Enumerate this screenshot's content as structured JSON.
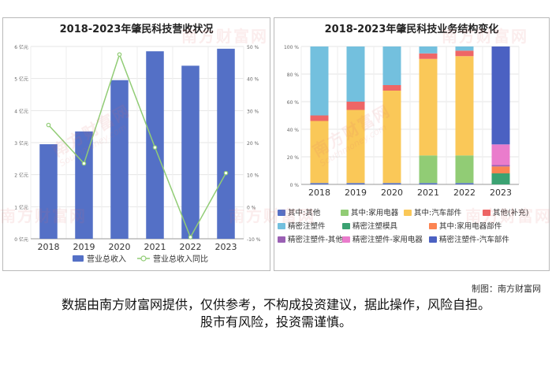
{
  "chart_data": [
    {
      "type": "bar+line",
      "title": "2018-2023年肇民科技营收状况",
      "categories": [
        "2018",
        "2019",
        "2020",
        "2021",
        "2022",
        "2023"
      ],
      "y_left": {
        "ylim": [
          0,
          6
        ],
        "ticks": [
          "0 亿元",
          "1 亿元",
          "2 亿元",
          "3 亿元",
          "4 亿元",
          "5 亿元",
          "6 亿元"
        ]
      },
      "y_right": {
        "ylim": [
          -10,
          50
        ],
        "ticks": [
          "-10 %",
          "0 %",
          "10 %",
          "20 %",
          "30 %",
          "40 %",
          "50 %"
        ]
      },
      "series": [
        {
          "name": "营业总收入",
          "kind": "bar",
          "axis": "left",
          "color": "#5470c6",
          "values": [
            2.95,
            3.35,
            4.95,
            5.85,
            5.4,
            5.93
          ]
        },
        {
          "name": "营业总收入同比",
          "kind": "line",
          "axis": "right",
          "color": "#91cc75",
          "values": [
            25.5,
            13.5,
            47.5,
            18.5,
            -9.5,
            10.5
          ]
        }
      ],
      "legend": "bottom",
      "grid": true
    },
    {
      "type": "stacked-bar",
      "title": "2018-2023年肇民科技业务结构变化",
      "categories": [
        "2018",
        "2019",
        "2020",
        "2021",
        "2022",
        "2023"
      ],
      "ylim": [
        0,
        100
      ],
      "ticks": [
        "0 %",
        "20 %",
        "40 %",
        "60 %",
        "80 %",
        "100 %"
      ],
      "series": [
        {
          "name": "其中:其他",
          "color": "#5470c6",
          "values": [
            1,
            1,
            1,
            1,
            1,
            0
          ]
        },
        {
          "name": "其中:家用电器",
          "color": "#91cc75",
          "values": [
            0,
            0,
            0,
            20,
            20,
            0
          ]
        },
        {
          "name": "其中:汽车部件",
          "color": "#fac858",
          "values": [
            45,
            53,
            67,
            70,
            72,
            0
          ]
        },
        {
          "name": "其他(补充)",
          "color": "#ee6666",
          "values": [
            4,
            6,
            4,
            4,
            4,
            0
          ]
        },
        {
          "name": "精密注塑件",
          "color": "#73c0de",
          "values": [
            50,
            40,
            28,
            5,
            3,
            0
          ]
        },
        {
          "name": "精密注塑模具",
          "color": "#3ba272",
          "values": [
            0,
            0,
            0,
            0,
            0,
            8
          ]
        },
        {
          "name": "其中:家用电器部件",
          "color": "#fc8452",
          "values": [
            0,
            0,
            0,
            0,
            0,
            5
          ]
        },
        {
          "name": "精密注塑件-其他",
          "color": "#9a60b4",
          "values": [
            0,
            0,
            0,
            0,
            0,
            1
          ]
        },
        {
          "name": "精密注塑件-家用电器",
          "color": "#ea7ccc",
          "values": [
            0,
            0,
            0,
            0,
            0,
            15
          ]
        },
        {
          "name": "精密注塑件-汽车部件",
          "color": "#4b61c2",
          "values": [
            0,
            0,
            0,
            0,
            0,
            71
          ]
        }
      ],
      "legend": "bottom",
      "grid": true
    }
  ],
  "watermark": {
    "text": "南方财富网",
    "sub": "Southmoney.com"
  },
  "credit": "制图：南方财富网",
  "disclaimer": [
    "数据由南方财富网提供，仅供参考，不构成投资建议，据此操作，风险自担。",
    "股市有风险，投资需谨慎。"
  ]
}
